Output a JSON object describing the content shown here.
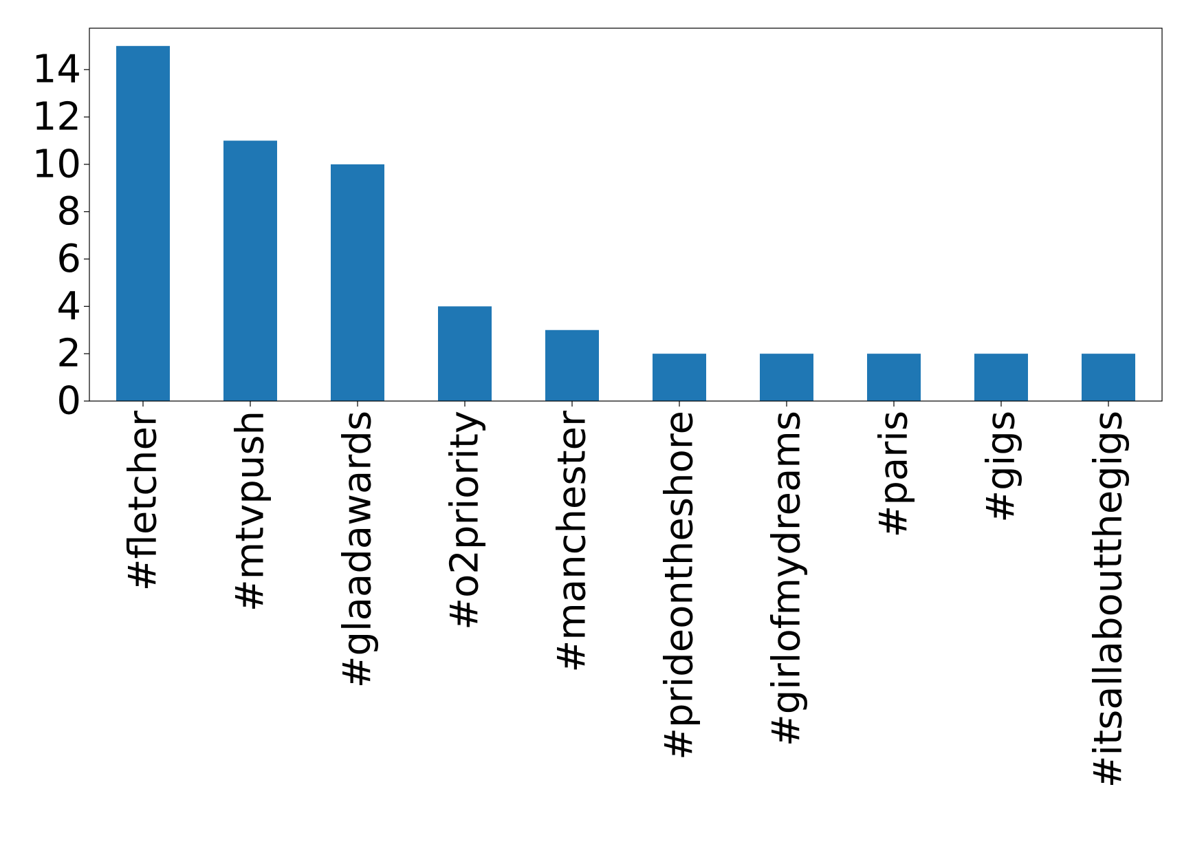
{
  "chart_data": {
    "type": "bar",
    "categories": [
      "#fletcher",
      "#mtvpush",
      "#glaadawards",
      "#o2priority",
      "#manchester",
      "#prideontheshore",
      "#girlofmydreams",
      "#paris",
      "#gigs",
      "#itsallaboutthegigs"
    ],
    "values": [
      15,
      11,
      10,
      4,
      3,
      2,
      2,
      2,
      2,
      2
    ],
    "yticks": [
      0,
      2,
      4,
      6,
      8,
      10,
      12,
      14
    ],
    "ylim": [
      0,
      15.75
    ],
    "bar_color": "#1f77b4",
    "grid": false,
    "legend": "none"
  }
}
